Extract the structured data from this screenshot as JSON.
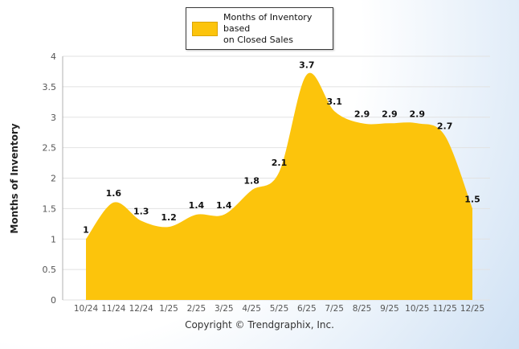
{
  "chart_data": {
    "type": "area",
    "title": "",
    "legend_lines": [
      "Months of Inventory based",
      "on Closed Sales"
    ],
    "ylabel": "Months of Inventory",
    "xlabel": "",
    "categories": [
      "10/24",
      "11/24",
      "12/24",
      "1/25",
      "2/25",
      "3/25",
      "4/25",
      "5/25",
      "6/25",
      "7/25",
      "8/25",
      "9/25",
      "10/25",
      "11/25",
      "12/25"
    ],
    "values": [
      1,
      1.6,
      1.3,
      1.2,
      1.4,
      1.4,
      1.8,
      2.1,
      3.7,
      3.1,
      2.9,
      2.9,
      2.9,
      2.7,
      1.5
    ],
    "ylim": [
      0,
      4
    ],
    "yticks": [
      0,
      0.5,
      1,
      1.5,
      2,
      2.5,
      3,
      3.5,
      4
    ],
    "grid": true,
    "legend_position": "top",
    "area_color": "#FCC40C",
    "grid_color": "#e2e2e2",
    "axis_text_color": "#555",
    "data_label_color": "#111"
  },
  "footer": {
    "copyright": "Copyright © Trendgraphix, Inc."
  }
}
